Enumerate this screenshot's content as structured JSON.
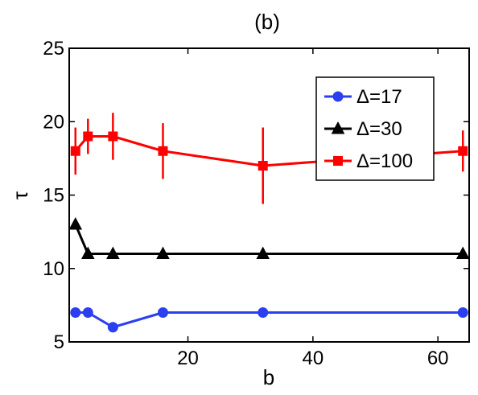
{
  "chart_data": {
    "type": "line",
    "title": "(b)",
    "xlabel": "b",
    "ylabel": "τ",
    "xlim": [
      1,
      65
    ],
    "ylim": [
      5,
      25
    ],
    "xticks": [
      20,
      40,
      60
    ],
    "yticks": [
      5,
      10,
      15,
      20,
      25
    ],
    "grid": false,
    "legend_position": "top-right",
    "x": [
      2,
      4,
      8,
      16,
      32,
      64
    ],
    "series": [
      {
        "name": "Δ=17",
        "color": "#2b3ff0",
        "marker": "circle",
        "values": [
          7,
          7,
          6,
          7,
          7,
          7
        ]
      },
      {
        "name": "Δ=30",
        "color": "#000000",
        "marker": "triangle",
        "values": [
          13,
          11,
          11,
          11,
          11,
          11
        ]
      },
      {
        "name": "Δ=100",
        "color": "#ff0000",
        "marker": "square",
        "values": [
          18,
          19,
          19,
          18,
          17,
          18
        ],
        "errors": [
          1.6,
          1.2,
          1.6,
          1.9,
          2.6,
          1.4
        ]
      }
    ]
  }
}
